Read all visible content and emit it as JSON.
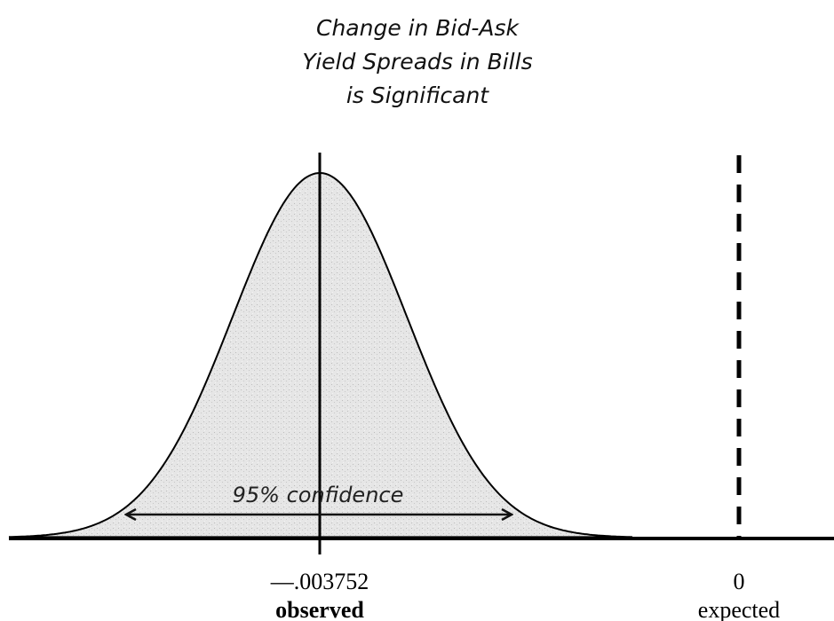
{
  "title": [
    "Change in Bid-Ask",
    "Yield Spreads in Bills",
    "is Significant"
  ],
  "interval_label": "95% confidence",
  "observed": {
    "value_label": "—.003752",
    "caption": "observed"
  },
  "expected": {
    "value_label": "0",
    "caption": "expected"
  }
}
